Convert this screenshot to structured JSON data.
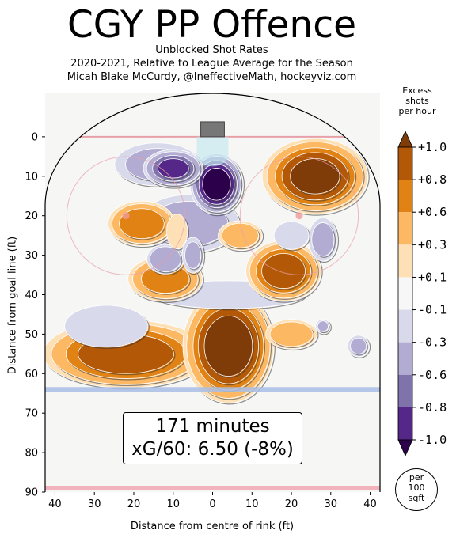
{
  "chart_data": {
    "type": "heatmap",
    "title": "CGY PP Offence",
    "subtitle_lines": [
      "Unblocked Shot Rates",
      "2020-2021, Relative to League Average for the Season",
      "Micah Blake McCurdy, @IneffectiveMath, hockeyviz.com"
    ],
    "xlabel": "Distance from centre of rink (ft)",
    "ylabel": "Distance from goal line (ft)",
    "x_ticks": [
      "40",
      "30",
      "20",
      "10",
      "0",
      "10",
      "20",
      "30",
      "40"
    ],
    "y_ticks": [
      "0",
      "10",
      "20",
      "30",
      "40",
      "50",
      "60",
      "70",
      "80",
      "90"
    ],
    "xlim": [
      -42.5,
      42.5
    ],
    "ylim": [
      -11,
      90
    ],
    "colorbar": {
      "title_lines": [
        "Excess",
        "shots",
        "per hour"
      ],
      "levels": [
        "+1.0",
        "+0.8",
        "+0.6",
        "+0.3",
        "+0.1",
        "-0.1",
        "-0.3",
        "-0.6",
        "-0.8",
        "-1.0"
      ],
      "bands": [
        "#7f3b08",
        "#b35806",
        "#e08214",
        "#fdb863",
        "#fee0b6",
        "#f7f7f7",
        "#d8daeb",
        "#b2abd2",
        "#8073ac",
        "#542788",
        "#2d004b"
      ]
    },
    "blobs": [
      {
        "x": 4,
        "y": 53,
        "rx": 12,
        "ry": 15,
        "value": 1.1
      },
      {
        "x": -22,
        "y": 55,
        "rx": 22,
        "ry": 9,
        "value": 0.9
      },
      {
        "x": 26,
        "y": 10,
        "rx": 14,
        "ry": 10,
        "value": 1.0
      },
      {
        "x": -18,
        "y": 22,
        "rx": 9,
        "ry": 6,
        "value": 0.75
      },
      {
        "x": -12,
        "y": 36,
        "rx": 10,
        "ry": 6,
        "value": 0.7
      },
      {
        "x": 18,
        "y": 34,
        "rx": 10,
        "ry": 8,
        "value": 0.9
      },
      {
        "x": 7,
        "y": 25,
        "rx": 6,
        "ry": 4,
        "value": 0.5
      },
      {
        "x": 20,
        "y": 50,
        "rx": 7,
        "ry": 4,
        "value": 0.5
      },
      {
        "x": -9,
        "y": 24,
        "rx": 3,
        "ry": 5,
        "value": 0.2
      },
      {
        "x": 1,
        "y": 12,
        "rx": 7,
        "ry": 8,
        "value": -1.1
      },
      {
        "x": -10,
        "y": 8,
        "rx": 8,
        "ry": 5,
        "value": -0.8
      },
      {
        "x": -6,
        "y": 22,
        "rx": 14,
        "ry": 8,
        "value": -0.35
      },
      {
        "x": -12,
        "y": 31,
        "rx": 5,
        "ry": 4,
        "value": -0.55
      },
      {
        "x": -14,
        "y": 7,
        "rx": 12,
        "ry": 6,
        "value": -0.3
      },
      {
        "x": 4,
        "y": 40,
        "rx": 22,
        "ry": 4,
        "value": -0.2
      },
      {
        "x": 28,
        "y": 26,
        "rx": 4,
        "ry": 6,
        "value": -0.35
      },
      {
        "x": -27,
        "y": 48,
        "rx": 12,
        "ry": 6,
        "value": -0.2
      },
      {
        "x": -5,
        "y": 30,
        "rx": 3,
        "ry": 5,
        "value": -0.3
      },
      {
        "x": 37,
        "y": 53,
        "rx": 3,
        "ry": 3,
        "value": -0.3
      },
      {
        "x": 28,
        "y": 48,
        "rx": 2,
        "ry": 2,
        "value": -0.3
      },
      {
        "x": 20,
        "y": 25,
        "rx": 5,
        "ry": 4,
        "value": -0.2
      }
    ],
    "info": {
      "minutes": "171 minutes",
      "xg": "xG/60: 6.50 (-8%)"
    },
    "scale_note": [
      "per",
      "100",
      "sqft"
    ]
  }
}
